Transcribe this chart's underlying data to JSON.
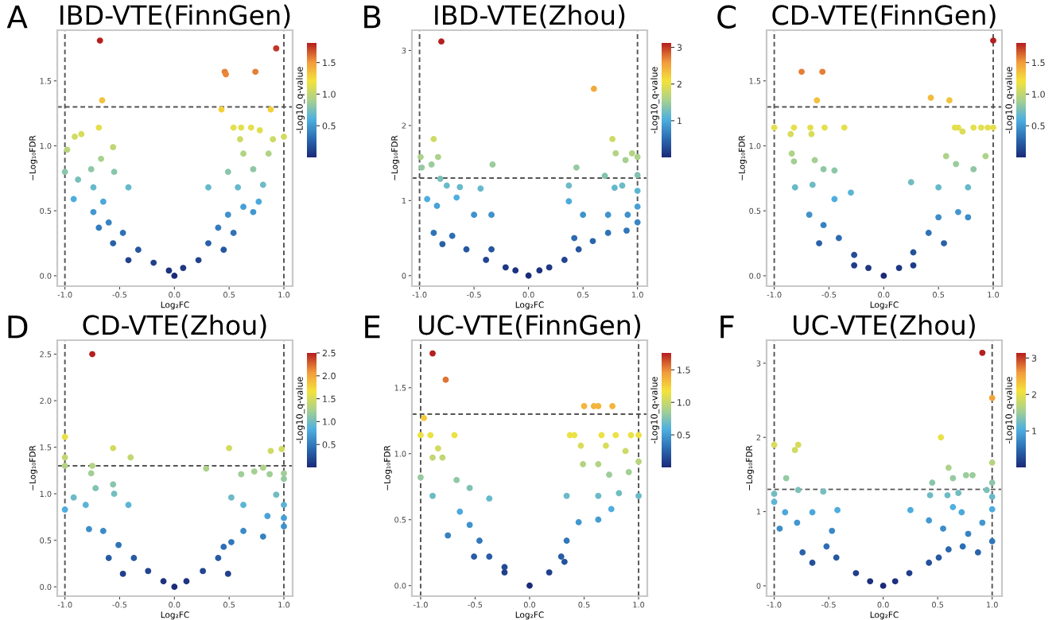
{
  "chart_data": [
    {
      "type": "scatter",
      "title": "IBD-VTE(FinnGen)",
      "xlabel": "Log₂FC",
      "ylabel": "−Log₁₀FDR",
      "clabel": "-Log10_q-value",
      "annotations": [
        "A"
      ],
      "grid": false,
      "marker": "circle",
      "xlim": [
        -1.07,
        1.08
      ],
      "xticks": [
        {
          "value": -1,
          "label": "-1.0"
        },
        {
          "value": -0.5,
          "label": "-0.5"
        },
        {
          "value": 0,
          "label": "0.0"
        },
        {
          "value": 0.5,
          "label": "0.5"
        },
        {
          "value": 1,
          "label": "1.0"
        }
      ],
      "ylim": [
        -0.08,
        1.89
      ],
      "yticks": [
        {
          "value": 0,
          "label": "0.0"
        },
        {
          "value": 0.5,
          "label": "0.5"
        },
        {
          "value": 1,
          "label": "1.0"
        },
        {
          "value": 1.5,
          "label": "1.5"
        }
      ],
      "clim": [
        0,
        1.81
      ],
      "cticks": [
        {
          "value": 0.5,
          "label": "0.5"
        },
        {
          "value": 1,
          "label": "1.0"
        },
        {
          "value": 1.5,
          "label": "1.5"
        }
      ],
      "ref_lines": [
        {
          "axis": "x",
          "value": -1,
          "line_style": "dashed"
        },
        {
          "axis": "x",
          "value": 1,
          "line_style": "dashed"
        },
        {
          "axis": "y",
          "value": 1.3,
          "line_style": "dashed"
        }
      ],
      "x": [
        -0.68,
        0.93,
        0.46,
        0.47,
        0.74,
        -0.66,
        0.43,
        0.88,
        -0.69,
        -0.85,
        -0.91,
        -0.98,
        -0.56,
        0.54,
        0.61,
        0.7,
        0.78,
        0.9,
        1.0,
        0.6,
        -1.0,
        -0.67,
        -0.76,
        -0.55,
        -0.88,
        0.63,
        0.72,
        0.86,
        0.49,
        -0.74,
        -0.42,
        -0.92,
        0.31,
        0.58,
        0.81,
        -0.74,
        -0.6,
        -0.47,
        -0.33,
        -0.19,
        -0.05,
        0,
        0.08,
        0.22,
        0.31,
        0.4,
        0.49,
        0.63,
        0.72,
        -0.56,
        -0.42,
        -0.65,
        0.54,
        0.45,
        0.77,
        -0.69
      ],
      "values": [
        1.81,
        1.75,
        1.57,
        1.55,
        1.57,
        1.35,
        1.28,
        1.28,
        1.14,
        1.09,
        1.07,
        0.97,
        0.99,
        1.14,
        1.14,
        1.14,
        1.12,
        1.05,
        1.07,
        1.05,
        0.8,
        0.9,
        0.82,
        0.8,
        0.74,
        0.94,
        0.82,
        0.94,
        0.8,
        0.68,
        0.68,
        0.59,
        0.68,
        0.68,
        0.7,
        0.49,
        0.41,
        0.33,
        0.2,
        0.1,
        0.04,
        0,
        0.06,
        0.12,
        0.25,
        0.37,
        0.47,
        0.53,
        0.49,
        0.25,
        0.12,
        0.57,
        0.33,
        0.2,
        0.57,
        0.37
      ],
      "cvalues": [
        1.81,
        1.75,
        1.57,
        1.55,
        1.57,
        1.35,
        1.28,
        1.28,
        1.14,
        1.09,
        1.07,
        0.97,
        0.99,
        1.14,
        1.14,
        1.14,
        1.12,
        1.05,
        1.07,
        1.05,
        0.8,
        0.9,
        0.82,
        0.8,
        0.74,
        0.94,
        0.82,
        0.94,
        0.8,
        0.68,
        0.68,
        0.59,
        0.68,
        0.68,
        0.7,
        0.49,
        0.41,
        0.33,
        0.2,
        0.1,
        0.04,
        0,
        0.06,
        0.12,
        0.25,
        0.37,
        0.47,
        0.53,
        0.49,
        0.25,
        0.12,
        0.57,
        0.33,
        0.2,
        0.57,
        0.37
      ]
    },
    {
      "type": "scatter",
      "title": "IBD-VTE(Zhou)",
      "xlabel": "Log₂FC",
      "ylabel": "−Log₁₀FDR",
      "clabel": "-Log10_q-value",
      "annotations": [
        "B"
      ],
      "grid": false,
      "marker": "circle",
      "xlim": [
        -1.07,
        1.09
      ],
      "xticks": [
        {
          "value": -1,
          "label": "-1.0"
        },
        {
          "value": -0.5,
          "label": "-0.5"
        },
        {
          "value": 0,
          "label": "0.0"
        },
        {
          "value": 0.5,
          "label": "0.5"
        },
        {
          "value": 1,
          "label": "1.0"
        }
      ],
      "ylim": [
        -0.14,
        3.27
      ],
      "yticks": [
        0,
        1,
        2,
        3
      ],
      "clim": [
        0,
        3.12
      ],
      "cticks": [
        1,
        2,
        3
      ],
      "ref_lines": [
        {
          "axis": "x",
          "value": -1,
          "line_style": "dashed"
        },
        {
          "axis": "x",
          "value": 1,
          "line_style": "dashed"
        },
        {
          "axis": "y",
          "value": 1.3,
          "line_style": "dashed"
        }
      ],
      "x": [
        -0.8,
        0.6,
        -0.87,
        0.77,
        -0.99,
        -0.83,
        -0.98,
        -0.89,
        -0.33,
        0.44,
        0.8,
        0.89,
        0.95,
        1.0,
        -0.81,
        -0.75,
        -0.63,
        -0.44,
        0.37,
        0.7,
        1.0,
        1.0,
        1.0,
        0.86,
        0.79,
        -0.93,
        -0.84,
        -0.66,
        -0.5,
        -0.34,
        0.37,
        0.5,
        0.73,
        0.91,
        1.0,
        0.9,
        -0.87,
        -0.7,
        -0.57,
        -0.39,
        -0.21,
        0,
        0.19,
        0.33,
        0.46,
        0.59,
        0.73,
        -0.79,
        -0.34,
        -0.12,
        0.1,
        0.42
      ],
      "values": [
        3.12,
        2.49,
        1.82,
        1.82,
        1.58,
        1.58,
        1.44,
        1.48,
        1.48,
        1.44,
        1.63,
        1.54,
        1.63,
        1.58,
        1.29,
        1.2,
        1.18,
        1.16,
        1.2,
        1.33,
        1.34,
        1.13,
        0.92,
        1.2,
        1.17,
        1.02,
        0.93,
        1.04,
        0.81,
        0.81,
        0.99,
        0.81,
        0.81,
        0.81,
        0.71,
        0.6,
        0.57,
        0.53,
        0.35,
        0.21,
        0.11,
        0,
        0.11,
        0.21,
        0.35,
        0.46,
        0.57,
        0.42,
        0.35,
        0.07,
        0.07,
        0.5
      ],
      "cvalues": [
        3.12,
        2.49,
        1.82,
        1.82,
        1.58,
        1.58,
        1.44,
        1.48,
        1.48,
        1.44,
        1.63,
        1.54,
        1.63,
        1.58,
        1.29,
        1.2,
        1.18,
        1.16,
        1.2,
        1.33,
        1.34,
        1.13,
        0.92,
        1.2,
        1.17,
        1.02,
        0.93,
        1.04,
        0.81,
        0.81,
        0.99,
        0.81,
        0.81,
        0.81,
        0.71,
        0.6,
        0.57,
        0.53,
        0.35,
        0.21,
        0.11,
        0,
        0.11,
        0.21,
        0.35,
        0.46,
        0.57,
        0.42,
        0.35,
        0.07,
        0.07,
        0.5
      ]
    },
    {
      "type": "scatter",
      "title": "CD-VTE(FinnGen)",
      "xlabel": "Log₂FC",
      "ylabel": "−Log₁₀FDR",
      "clabel": "-Log10_q-value",
      "annotations": [
        "C"
      ],
      "grid": false,
      "marker": "circle",
      "xlim": [
        -1.07,
        1.08
      ],
      "xticks": [
        {
          "value": -1,
          "label": "-1.0"
        },
        {
          "value": -0.5,
          "label": "-0.5"
        },
        {
          "value": 0,
          "label": "0.0"
        },
        {
          "value": 0.5,
          "label": "0.5"
        },
        {
          "value": 1,
          "label": "1.0"
        }
      ],
      "ylim": [
        -0.08,
        1.89
      ],
      "yticks": [
        {
          "value": 0,
          "label": "0.0"
        },
        {
          "value": 0.5,
          "label": "0.5"
        },
        {
          "value": 1,
          "label": "1.0"
        },
        {
          "value": 1.5,
          "label": "1.5"
        }
      ],
      "clim": [
        0,
        1.81
      ],
      "cticks": [
        {
          "value": 0.5,
          "label": "0.5"
        },
        {
          "value": 1,
          "label": "1.0"
        },
        {
          "value": 1.5,
          "label": "1.5"
        }
      ],
      "ref_lines": [
        {
          "axis": "x",
          "value": -1,
          "line_style": "dashed"
        },
        {
          "axis": "x",
          "value": 1,
          "line_style": "dashed"
        },
        {
          "axis": "y",
          "value": 1.3,
          "line_style": "dashed"
        }
      ],
      "x": [
        1.0,
        -0.75,
        -0.56,
        -0.61,
        0.43,
        0.6,
        -1.0,
        -0.82,
        -0.67,
        -0.54,
        -0.36,
        0.65,
        0.68,
        0.82,
        0.89,
        0.95,
        1.0,
        -0.85,
        -0.66,
        0.72,
        -0.84,
        -0.82,
        -0.63,
        -0.55,
        -0.45,
        0.57,
        0.66,
        0.82,
        0.93,
        -0.81,
        -0.65,
        -0.45,
        -0.3,
        0.25,
        0.5,
        0.77,
        -0.68,
        -0.55,
        -0.41,
        -0.27,
        -0.14,
        0,
        0.14,
        0.27,
        0.41,
        0.5,
        0.68,
        0.77,
        -0.59,
        0.55,
        -0.27,
        0.27
      ],
      "values": [
        1.81,
        1.57,
        1.57,
        1.35,
        1.37,
        1.35,
        1.14,
        1.14,
        1.14,
        1.14,
        1.14,
        1.14,
        1.14,
        1.14,
        1.14,
        1.14,
        1.14,
        1.09,
        1.09,
        1.11,
        0.94,
        0.88,
        0.89,
        0.82,
        0.81,
        0.92,
        0.86,
        0.82,
        0.92,
        0.68,
        0.7,
        0.59,
        0.64,
        0.72,
        0.68,
        0.68,
        0.47,
        0.39,
        0.29,
        0.16,
        0.06,
        0,
        0.06,
        0.18,
        0.33,
        0.45,
        0.49,
        0.45,
        0.25,
        0.25,
        0.08,
        0.08
      ],
      "cvalues": [
        1.81,
        1.57,
        1.57,
        1.35,
        1.37,
        1.35,
        1.14,
        1.14,
        1.14,
        1.14,
        1.14,
        1.14,
        1.14,
        1.14,
        1.14,
        1.14,
        1.14,
        1.09,
        1.09,
        1.11,
        0.94,
        0.88,
        0.89,
        0.82,
        0.81,
        0.92,
        0.86,
        0.82,
        0.92,
        0.68,
        0.7,
        0.59,
        0.64,
        0.72,
        0.68,
        0.68,
        0.47,
        0.39,
        0.29,
        0.16,
        0.06,
        0,
        0.06,
        0.18,
        0.33,
        0.45,
        0.49,
        0.45,
        0.25,
        0.25,
        0.08,
        0.08
      ]
    },
    {
      "type": "scatter",
      "title": "CD-VTE(Zhou)",
      "xlabel": "Log₂FC",
      "ylabel": "−Log₁₀FDR",
      "clabel": "-Log10_q-value",
      "annotations": [
        "D"
      ],
      "grid": false,
      "marker": "circle",
      "xlim": [
        -1.07,
        1.08
      ],
      "xticks": [
        {
          "value": -1,
          "label": "-1.0"
        },
        {
          "value": -0.5,
          "label": "-0.5"
        },
        {
          "value": 0,
          "label": "0.0"
        },
        {
          "value": 0.5,
          "label": "0.5"
        },
        {
          "value": 1,
          "label": "1.0"
        }
      ],
      "ylim": [
        -0.1,
        2.65
      ],
      "yticks": [
        {
          "value": 0,
          "label": "0.0"
        },
        {
          "value": 0.5,
          "label": "0.5"
        },
        {
          "value": 1,
          "label": "1.0"
        },
        {
          "value": 1.5,
          "label": "1.5"
        },
        {
          "value": 2,
          "label": "2.0"
        },
        {
          "value": 2.5,
          "label": "2.5"
        }
      ],
      "clim": [
        0,
        2.5
      ],
      "cticks": [
        {
          "value": 0.5,
          "label": "0.5"
        },
        {
          "value": 1,
          "label": "1.0"
        },
        {
          "value": 1.5,
          "label": "1.5"
        },
        {
          "value": 2,
          "label": "2.0"
        },
        {
          "value": 2.5,
          "label": "2.5"
        }
      ],
      "ref_lines": [
        {
          "axis": "x",
          "value": -1,
          "line_style": "dashed"
        },
        {
          "axis": "x",
          "value": 1,
          "line_style": "dashed"
        },
        {
          "axis": "y",
          "value": 1.3,
          "line_style": "dashed"
        }
      ],
      "x": [
        -0.75,
        -1.0,
        -1.0,
        -1.0,
        -0.56,
        -0.4,
        -0.75,
        -0.76,
        0.5,
        0.88,
        0.98,
        0.29,
        0.61,
        0.73,
        0.81,
        0.87,
        1.0,
        1.0,
        -0.92,
        -0.72,
        -0.56,
        -0.55,
        -0.81,
        -0.42,
        -1.0,
        0.52,
        0.63,
        0.93,
        1.0,
        1.0,
        0.85,
        -0.78,
        -0.65,
        -0.51,
        -0.37,
        -0.24,
        -0.1,
        0,
        0.11,
        0.26,
        0.4,
        0.52,
        0.63,
        0.81,
        1.0,
        -0.6,
        0.45,
        -0.47,
        0.49
      ],
      "values": [
        2.5,
        1.61,
        1.39,
        1.3,
        1.49,
        1.39,
        1.3,
        1.22,
        1.49,
        1.46,
        1.48,
        1.27,
        1.21,
        1.24,
        1.28,
        1.21,
        1.22,
        1.16,
        0.96,
        1.06,
        1.1,
        1.0,
        0.88,
        0.88,
        0.83,
        0.96,
        0.88,
        0.99,
        0.88,
        0.74,
        0.76,
        0.62,
        0.6,
        0.45,
        0.31,
        0.17,
        0.06,
        0,
        0.06,
        0.17,
        0.31,
        0.48,
        0.6,
        0.54,
        0.65,
        0.31,
        0.43,
        0.14,
        0.14
      ],
      "cvalues": [
        2.5,
        1.61,
        1.39,
        1.3,
        1.49,
        1.39,
        1.3,
        1.22,
        1.49,
        1.46,
        1.48,
        1.27,
        1.21,
        1.24,
        1.28,
        1.21,
        1.22,
        1.16,
        0.96,
        1.06,
        1.1,
        1.0,
        0.88,
        0.88,
        0.83,
        0.96,
        0.88,
        0.99,
        0.88,
        0.74,
        0.76,
        0.62,
        0.6,
        0.45,
        0.31,
        0.17,
        0.06,
        0,
        0.06,
        0.17,
        0.31,
        0.48,
        0.6,
        0.54,
        0.65,
        0.31,
        0.43,
        0.14,
        0.14
      ]
    },
    {
      "type": "scatter",
      "title": "UC-VTE(FinnGen)",
      "xlabel": "Log₂FC",
      "ylabel": "−Log₁₀FDR",
      "clabel": "-Log10_q-value",
      "annotations": [
        "E"
      ],
      "grid": false,
      "marker": "circle",
      "xlim": [
        -1.08,
        1.08
      ],
      "xticks": [
        {
          "value": -1,
          "label": "-1.0"
        },
        {
          "value": -0.5,
          "label": "-0.5"
        },
        {
          "value": 0,
          "label": "0.0"
        },
        {
          "value": 0.5,
          "label": "0.5"
        },
        {
          "value": 1,
          "label": "1.0"
        }
      ],
      "ylim": [
        -0.08,
        1.86
      ],
      "yticks": [
        {
          "value": 0,
          "label": "0.0"
        },
        {
          "value": 0.5,
          "label": "0.5"
        },
        {
          "value": 1,
          "label": "1.0"
        },
        {
          "value": 1.5,
          "label": "1.5"
        }
      ],
      "clim": [
        0,
        1.76
      ],
      "cticks": [
        {
          "value": 0.5,
          "label": "0.5"
        },
        {
          "value": 1,
          "label": "1.0"
        },
        {
          "value": 1.5,
          "label": "1.5"
        }
      ],
      "ref_lines": [
        {
          "axis": "x",
          "value": -1,
          "line_style": "dashed"
        },
        {
          "axis": "x",
          "value": 1,
          "line_style": "dashed"
        },
        {
          "axis": "y",
          "value": 1.3,
          "line_style": "dashed"
        }
      ],
      "x": [
        -0.89,
        -0.77,
        0.5,
        0.59,
        0.63,
        0.76,
        -0.97,
        -1.0,
        -0.91,
        -0.69,
        0.37,
        0.41,
        0.66,
        0.79,
        0.93,
        1.0,
        0.47,
        0.7,
        0.88,
        -0.84,
        -0.89,
        -0.8,
        -1.0,
        0.49,
        0.63,
        0.73,
        0.91,
        1.0,
        -0.67,
        -0.89,
        -0.55,
        -0.37,
        0.34,
        0.63,
        0.82,
        1.0,
        -0.64,
        -0.75,
        -0.55,
        -0.46,
        -0.37,
        -0.23,
        0,
        0.18,
        0.29,
        0.34,
        0.45,
        0.63,
        0.75,
        -0.23,
        -0.51,
        0.32
      ],
      "values": [
        1.76,
        1.56,
        1.36,
        1.36,
        1.36,
        1.36,
        1.27,
        1.14,
        1.14,
        1.14,
        1.14,
        1.14,
        1.14,
        1.14,
        1.14,
        1.14,
        1.06,
        1.06,
        1.02,
        1.04,
        0.97,
        0.97,
        0.82,
        0.92,
        0.92,
        0.84,
        0.86,
        0.94,
        0.8,
        0.68,
        0.74,
        0.66,
        0.68,
        0.68,
        0.7,
        0.68,
        0.56,
        0.38,
        0.46,
        0.34,
        0.22,
        0.1,
        0,
        0.1,
        0.22,
        0.34,
        0.48,
        0.5,
        0.58,
        0.14,
        0.22,
        0.18
      ],
      "cvalues": [
        1.76,
        1.56,
        1.36,
        1.36,
        1.36,
        1.36,
        1.27,
        1.14,
        1.14,
        1.14,
        1.14,
        1.14,
        1.14,
        1.14,
        1.14,
        1.14,
        1.06,
        1.06,
        1.02,
        1.04,
        0.97,
        0.97,
        0.82,
        0.92,
        0.92,
        0.84,
        0.86,
        0.94,
        0.8,
        0.68,
        0.74,
        0.66,
        0.68,
        0.68,
        0.7,
        0.68,
        0.56,
        0.38,
        0.46,
        0.34,
        0.22,
        0.1,
        0,
        0.1,
        0.22,
        0.34,
        0.48,
        0.5,
        0.58,
        0.14,
        0.22,
        0.18
      ]
    },
    {
      "type": "scatter",
      "title": "UC-VTE(Zhou)",
      "xlabel": "Log₂FC",
      "ylabel": "−Log₁₀FDR",
      "clabel": "-Log10_q-value",
      "annotations": [
        "F"
      ],
      "grid": false,
      "marker": "circle",
      "xlim": [
        -1.07,
        1.09
      ],
      "xticks": [
        {
          "value": -1,
          "label": "-1.0"
        },
        {
          "value": -0.5,
          "label": "-0.5"
        },
        {
          "value": 0,
          "label": "0.0"
        },
        {
          "value": 0.5,
          "label": "0.5"
        },
        {
          "value": 1,
          "label": "1.0"
        }
      ],
      "ylim": [
        -0.14,
        3.31
      ],
      "yticks": [
        0,
        1,
        2,
        3
      ],
      "clim": [
        0,
        3.14
      ],
      "cticks": [
        1,
        2,
        3
      ],
      "ref_lines": [
        {
          "axis": "x",
          "value": -1,
          "line_style": "dashed"
        },
        {
          "axis": "x",
          "value": 1,
          "line_style": "dashed"
        },
        {
          "axis": "y",
          "value": 1.3,
          "line_style": "dashed"
        }
      ],
      "x": [
        0.91,
        1.0,
        0.53,
        -0.78,
        -0.81,
        -1.0,
        1.0,
        0.6,
        -0.89,
        0.64,
        0.76,
        0.82,
        0.45,
        1.0,
        -0.78,
        -0.55,
        -1.0,
        -1.0,
        0.43,
        0.59,
        0.69,
        1.0,
        0.95,
        0.64,
        1.0,
        -0.9,
        -0.42,
        0.25,
        0.72,
        -0.79,
        -0.65,
        -0.95,
        -0.47,
        0.42,
        0.55,
        0.91,
        1.0,
        0.78,
        -0.74,
        -0.52,
        -0.43,
        -0.25,
        -0.12,
        0,
        0.11,
        0.24,
        0.42,
        0.6,
        0.73,
        0.87,
        -0.65,
        0.51
      ],
      "values": [
        3.14,
        2.53,
        2.0,
        1.9,
        1.83,
        1.9,
        1.66,
        1.59,
        1.45,
        1.45,
        1.49,
        1.49,
        1.39,
        1.39,
        1.29,
        1.27,
        1.24,
        1.13,
        1.22,
        1.22,
        1.25,
        1.2,
        1.29,
        1.06,
        1.03,
        0.99,
        1.02,
        1.02,
        0.99,
        0.85,
        0.99,
        0.77,
        0.74,
        0.88,
        0.77,
        0.85,
        0.6,
        0.7,
        0.45,
        0.53,
        0.38,
        0.17,
        0.06,
        0,
        0.06,
        0.17,
        0.31,
        0.49,
        0.53,
        0.45,
        0.31,
        0.38
      ],
      "cvalues": [
        3.14,
        2.53,
        2.0,
        1.9,
        1.83,
        1.9,
        1.66,
        1.59,
        1.45,
        1.45,
        1.49,
        1.49,
        1.39,
        1.39,
        1.29,
        1.27,
        1.24,
        1.13,
        1.22,
        1.22,
        1.25,
        1.2,
        1.29,
        1.06,
        1.03,
        0.99,
        1.02,
        1.02,
        0.99,
        0.85,
        0.99,
        0.77,
        0.74,
        0.88,
        0.77,
        0.85,
        0.6,
        0.7,
        0.45,
        0.53,
        0.38,
        0.17,
        0.06,
        0,
        0.06,
        0.17,
        0.31,
        0.49,
        0.53,
        0.45,
        0.31,
        0.38
      ]
    }
  ]
}
